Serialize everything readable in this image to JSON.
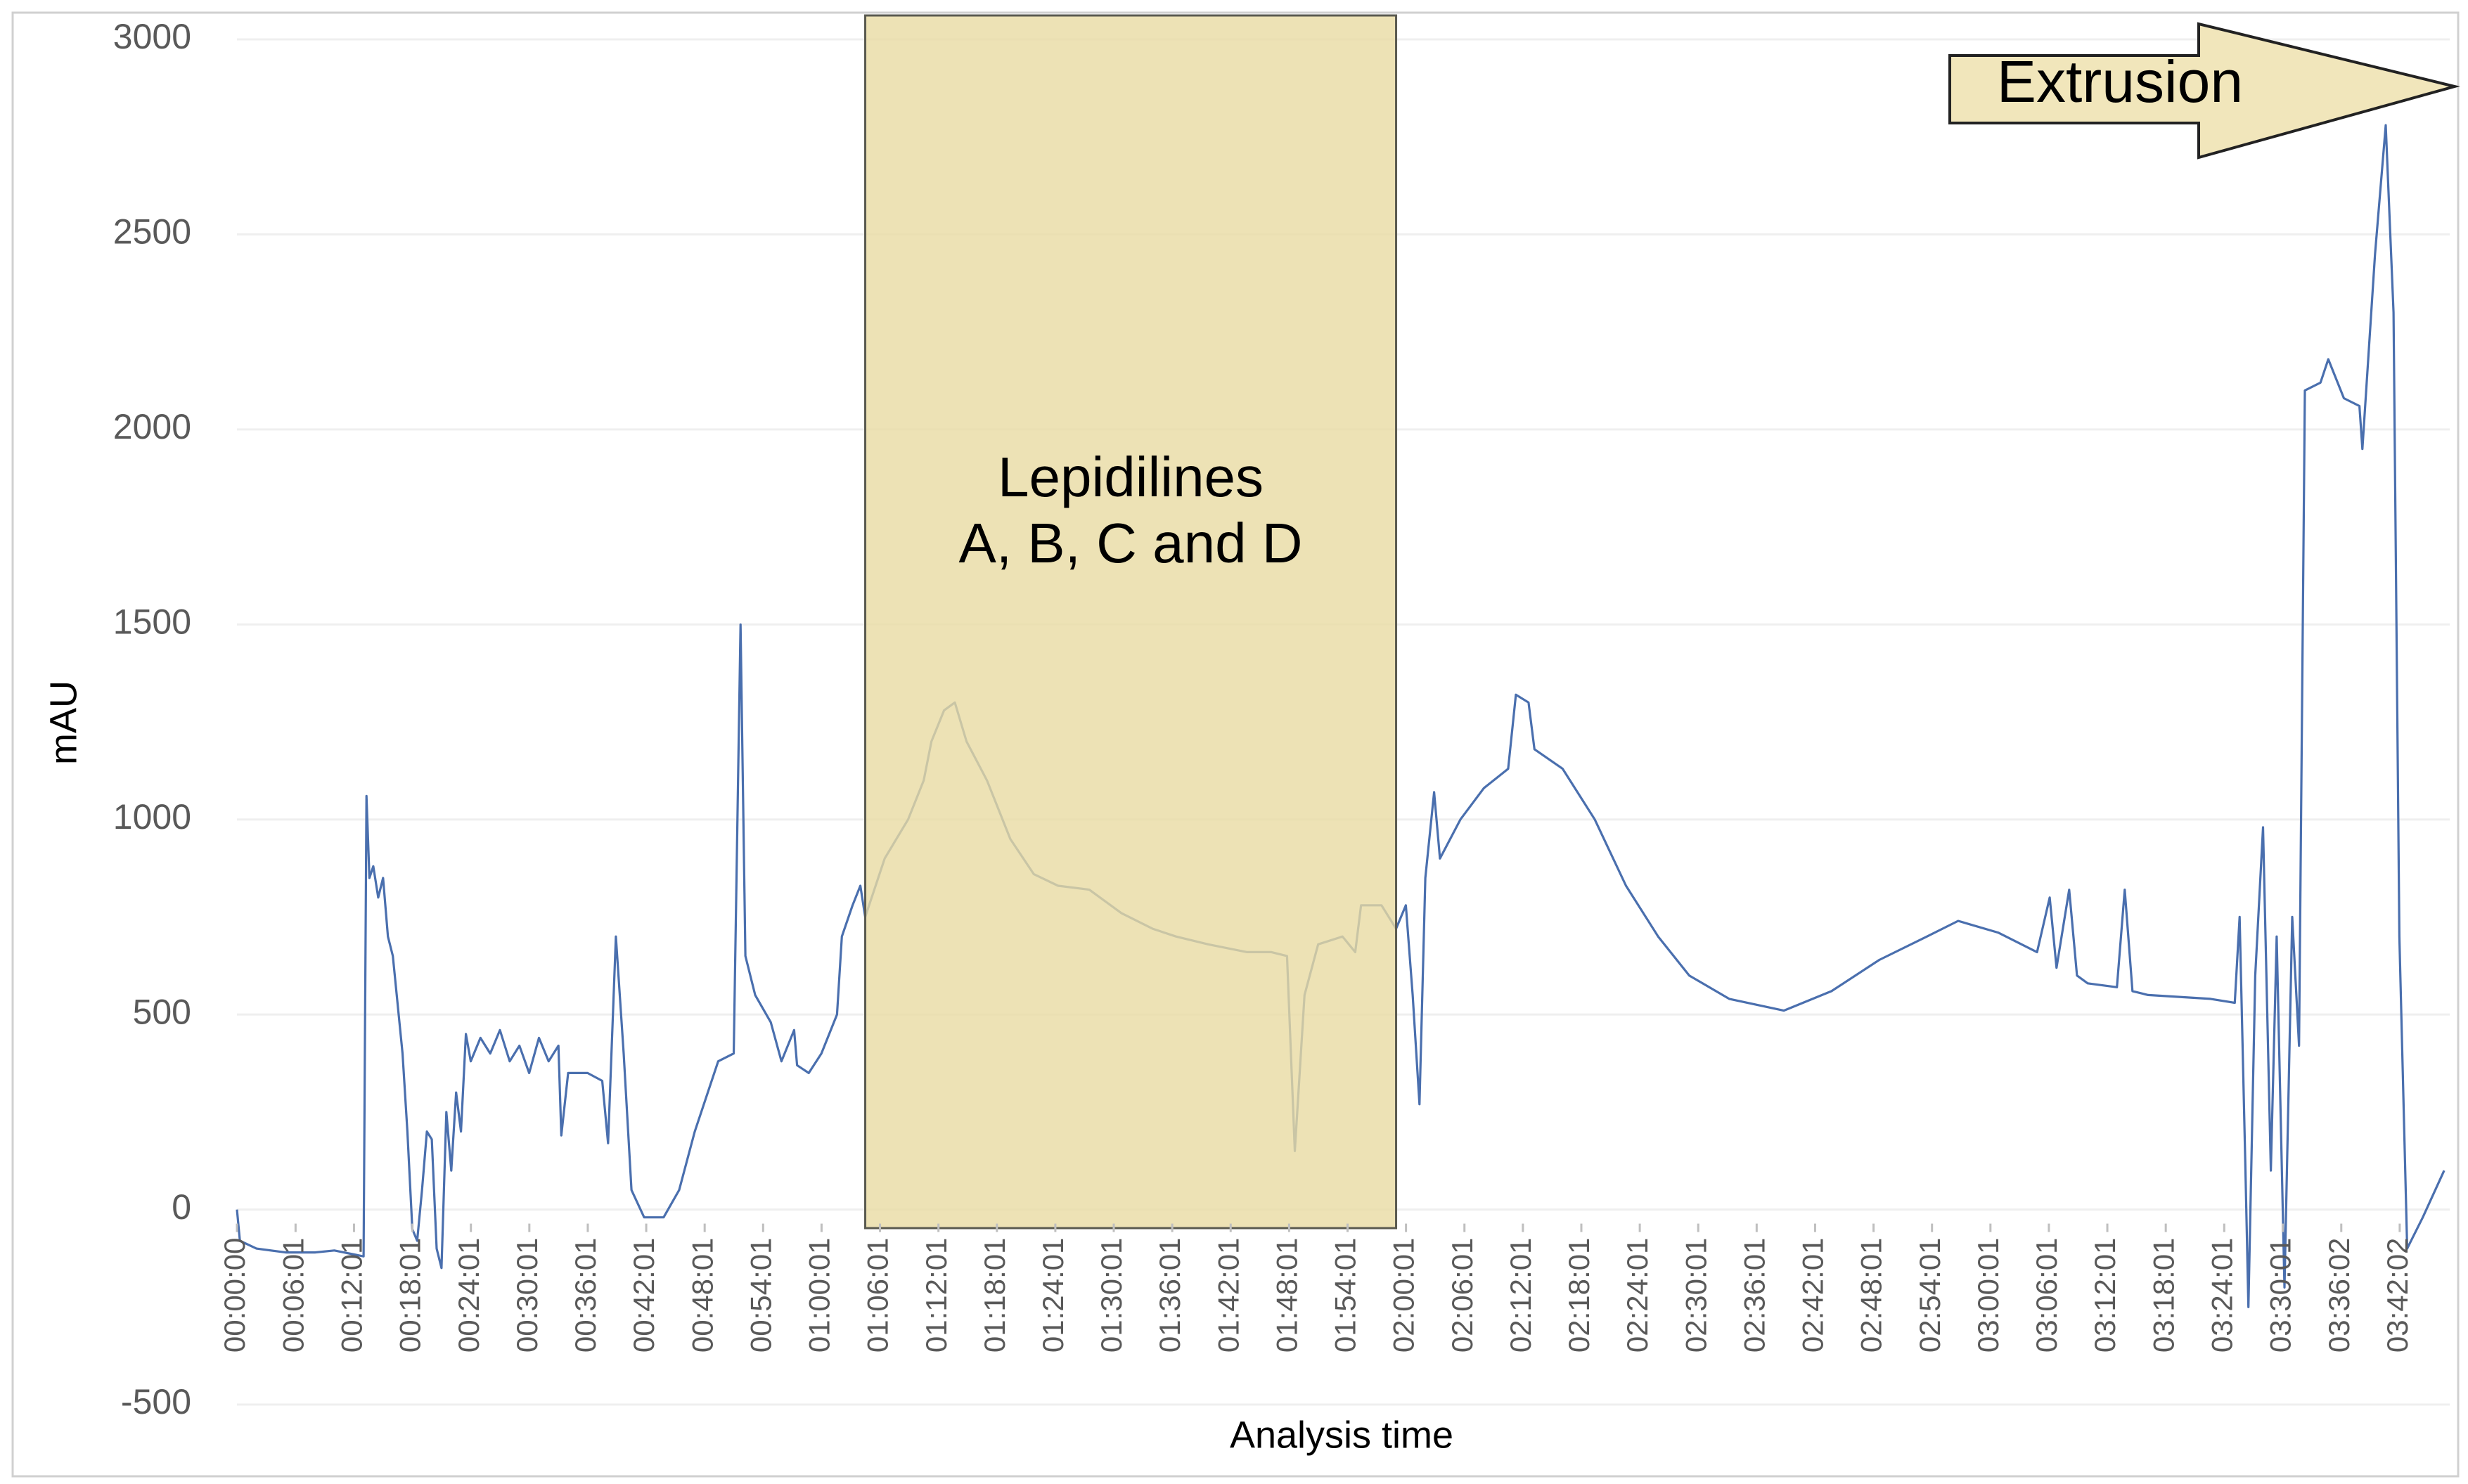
{
  "chart_data": {
    "type": "line",
    "xlabel": "Analysis time",
    "ylabel": "mAU",
    "xlim": [
      0,
      13630
    ],
    "ylim": [
      -500,
      3000
    ],
    "yticks": [
      -500,
      0,
      500,
      1000,
      1500,
      2000,
      2500,
      3000
    ],
    "xticks": [
      {
        "value": 0,
        "label": "00:00:00"
      },
      {
        "value": 361,
        "label": "00:06:01"
      },
      {
        "value": 721,
        "label": "00:12:01"
      },
      {
        "value": 1081,
        "label": "00:18:01"
      },
      {
        "value": 1441,
        "label": "00:24:01"
      },
      {
        "value": 1801,
        "label": "00:30:01"
      },
      {
        "value": 2161,
        "label": "00:36:01"
      },
      {
        "value": 2521,
        "label": "00:42:01"
      },
      {
        "value": 2881,
        "label": "00:48:01"
      },
      {
        "value": 3241,
        "label": "00:54:01"
      },
      {
        "value": 3601,
        "label": "01:00:01"
      },
      {
        "value": 3961,
        "label": "01:06:01"
      },
      {
        "value": 4321,
        "label": "01:12:01"
      },
      {
        "value": 4681,
        "label": "01:18:01"
      },
      {
        "value": 5041,
        "label": "01:24:01"
      },
      {
        "value": 5401,
        "label": "01:30:01"
      },
      {
        "value": 5761,
        "label": "01:36:01"
      },
      {
        "value": 6121,
        "label": "01:42:01"
      },
      {
        "value": 6481,
        "label": "01:48:01"
      },
      {
        "value": 6841,
        "label": "01:54:01"
      },
      {
        "value": 7201,
        "label": "02:00:01"
      },
      {
        "value": 7561,
        "label": "02:06:01"
      },
      {
        "value": 7921,
        "label": "02:12:01"
      },
      {
        "value": 8281,
        "label": "02:18:01"
      },
      {
        "value": 8641,
        "label": "02:24:01"
      },
      {
        "value": 9001,
        "label": "02:30:01"
      },
      {
        "value": 9361,
        "label": "02:36:01"
      },
      {
        "value": 9721,
        "label": "02:42:01"
      },
      {
        "value": 10081,
        "label": "02:48:01"
      },
      {
        "value": 10441,
        "label": "02:54:01"
      },
      {
        "value": 10801,
        "label": "03:00:01"
      },
      {
        "value": 11161,
        "label": "03:06:01"
      },
      {
        "value": 11521,
        "label": "03:12:01"
      },
      {
        "value": 11881,
        "label": "03:18:01"
      },
      {
        "value": 12241,
        "label": "03:24:01"
      },
      {
        "value": 12601,
        "label": "03:30:01"
      },
      {
        "value": 12962,
        "label": "03:36:02"
      },
      {
        "value": 13322,
        "label": "03:42:02"
      }
    ],
    "grid": true,
    "x": [
      0,
      18,
      120,
      300,
      480,
      600,
      780,
      798,
      816,
      840,
      870,
      900,
      930,
      960,
      1020,
      1050,
      1080,
      1110,
      1140,
      1170,
      1200,
      1230,
      1260,
      1290,
      1320,
      1350,
      1380,
      1410,
      1440,
      1500,
      1560,
      1620,
      1680,
      1740,
      1800,
      1860,
      1920,
      1980,
      1998,
      2040,
      2160,
      2250,
      2286,
      2334,
      2382,
      2430,
      2508,
      2628,
      2724,
      2820,
      2964,
      3060,
      3102,
      3132,
      3192,
      3288,
      3354,
      3432,
      3450,
      3522,
      3600,
      3696,
      3726,
      3792,
      3840,
      3870,
      3990,
      4134,
      4230,
      4278,
      4356,
      4422,
      4494,
      4620,
      4764,
      4908,
      5058,
      5250,
      5448,
      5640,
      5784,
      5982,
      6222,
      6372,
      6468,
      6516,
      6576,
      6660,
      6810,
      6888,
      6924,
      7050,
      7140,
      7200,
      7242,
      7284,
      7320,
      7374,
      7410,
      7536,
      7680,
      7830,
      7878,
      7956,
      7992,
      8166,
      8364,
      8556,
      8754,
      8946,
      9192,
      9528,
      9822,
      10116,
      10410,
      10602,
      10848,
      11088,
      11166,
      11208,
      11286,
      11334,
      11400,
      11580,
      11628,
      11676,
      11772,
      12156,
      12306,
      12336,
      12372,
      12390,
      12432,
      12480,
      12528,
      12564,
      12612,
      12660,
      12702,
      12738,
      12834,
      12882,
      12978,
      13074,
      13092,
      13170,
      13236,
      13284,
      13320,
      13368,
      13464,
      13596
    ],
    "series": [
      {
        "color": "#4a6fae",
        "values": [
          0,
          -80,
          -100,
          -110,
          -110,
          -105,
          -120,
          1060,
          850,
          880,
          800,
          850,
          700,
          650,
          400,
          200,
          -50,
          -80,
          50,
          200,
          180,
          -100,
          -150,
          250,
          100,
          300,
          200,
          450,
          380,
          440,
          400,
          460,
          380,
          420,
          350,
          440,
          380,
          420,
          190,
          350,
          350,
          330,
          170,
          700,
          400,
          50,
          -20,
          -20,
          50,
          200,
          380,
          400,
          1500,
          650,
          550,
          480,
          380,
          460,
          370,
          350,
          400,
          500,
          700,
          780,
          830,
          750,
          900,
          1000,
          1100,
          1200,
          1280,
          1300,
          1200,
          1100,
          950,
          860,
          830,
          820,
          760,
          720,
          700,
          680,
          660,
          660,
          650,
          150,
          550,
          680,
          700,
          660,
          780,
          780,
          720,
          780,
          550,
          270,
          850,
          1070,
          900,
          1000,
          1080,
          1130,
          1320,
          1300,
          1180,
          1130,
          1000,
          830,
          700,
          600,
          540,
          510,
          560,
          640,
          700,
          740,
          710,
          660,
          800,
          620,
          820,
          600,
          580,
          570,
          820,
          560,
          550,
          540,
          530,
          750,
          100,
          -250,
          600,
          980,
          100,
          700,
          -200,
          750,
          420,
          2100,
          2120,
          2180,
          2080,
          2060,
          1950,
          2450,
          2780,
          2300,
          700,
          -100,
          -20,
          100
        ]
      }
    ],
    "highlight": {
      "xrange": [
        3870,
        7140
      ],
      "label": [
        "Lepidilines",
        "A, B, C and D"
      ],
      "color": "#e9dba3"
    },
    "arrow_label": "Extrusion"
  }
}
